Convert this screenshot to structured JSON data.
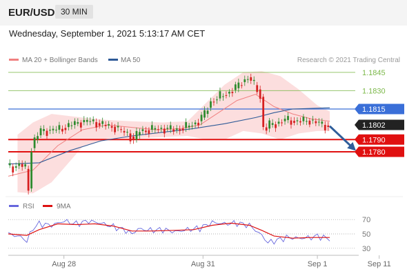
{
  "header": {
    "pair": "EUR/USD",
    "timeframe": "30 MIN",
    "datetime": "Wednesday, September 1, 2021 5:13:17 AM CET"
  },
  "legend": {
    "ma20": {
      "label": "MA 20 + Bollinger Bands",
      "color": "#f08080"
    },
    "ma50": {
      "label": "MA 50",
      "color": "#2e5a97"
    },
    "credit": "Research © 2021 Trading Central",
    "rsi": {
      "label": "RSI",
      "color": "#6666dd"
    },
    "ma9": {
      "label": "9MA",
      "color": "#dd1111"
    }
  },
  "colors": {
    "bull": "#2e8b2e",
    "bear": "#d62020",
    "target": "#7cb84a",
    "pivot": "#3a6fd8",
    "support": "#e01010",
    "last": "#222222",
    "arrow": "#2f5d9a"
  },
  "chart_data": [
    {
      "type": "candlestick",
      "title": "EUR/USD",
      "timeframe": "30 MIN",
      "ylim": [
        1.1745,
        1.185
      ],
      "x_ticks": [
        "Aug 28",
        "Aug 31",
        "Sep 1",
        "Sep 11"
      ],
      "levels": [
        {
          "value": 1.1845,
          "label": "1.1845",
          "role": "target"
        },
        {
          "value": 1.183,
          "label": "1.1830",
          "role": "target"
        },
        {
          "value": 1.1815,
          "label": "1.1815",
          "role": "pivot"
        },
        {
          "value": 1.1802,
          "label": "1.1802",
          "role": "last"
        },
        {
          "value": 1.179,
          "label": "1.1790",
          "role": "support"
        },
        {
          "value": 1.178,
          "label": "1.1780",
          "role": "support"
        }
      ],
      "path": [
        [
          0,
          1.1769
        ],
        [
          2,
          1.1767
        ],
        [
          4,
          1.177
        ],
        [
          6,
          1.1766
        ],
        [
          7,
          1.175
        ],
        [
          8,
          1.1783
        ],
        [
          9,
          1.179
        ],
        [
          11,
          1.1797
        ],
        [
          16,
          1.1798
        ],
        [
          20,
          1.1801
        ],
        [
          23,
          1.1804
        ],
        [
          27,
          1.1805
        ],
        [
          31,
          1.1802
        ],
        [
          35,
          1.18
        ],
        [
          37,
          1.1797
        ],
        [
          39,
          1.1795
        ],
        [
          41,
          1.179
        ],
        [
          43,
          1.1797
        ],
        [
          46,
          1.1798
        ],
        [
          50,
          1.1799
        ],
        [
          54,
          1.1798
        ],
        [
          58,
          1.18
        ],
        [
          62,
          1.1805
        ],
        [
          64,
          1.1811
        ],
        [
          66,
          1.1821
        ],
        [
          69,
          1.1825
        ],
        [
          72,
          1.1829
        ],
        [
          74,
          1.1832
        ],
        [
          76,
          1.1837
        ],
        [
          78,
          1.1841
        ],
        [
          79,
          1.1838
        ],
        [
          81,
          1.1831
        ],
        [
          82,
          1.1825
        ],
        [
          83,
          1.18
        ],
        [
          84,
          1.1799
        ],
        [
          85,
          1.1802
        ],
        [
          87,
          1.1803
        ],
        [
          90,
          1.1806
        ],
        [
          93,
          1.1805
        ],
        [
          96,
          1.1805
        ],
        [
          98,
          1.1806
        ],
        [
          100,
          1.1804
        ],
        [
          102,
          1.1802
        ],
        [
          104,
          1.1801
        ]
      ],
      "ma20": [
        [
          0,
          1.176
        ],
        [
          8,
          1.1765
        ],
        [
          16,
          1.1785
        ],
        [
          24,
          1.1798
        ],
        [
          32,
          1.1802
        ],
        [
          40,
          1.18
        ],
        [
          48,
          1.1798
        ],
        [
          56,
          1.1799
        ],
        [
          62,
          1.1802
        ],
        [
          68,
          1.1812
        ],
        [
          74,
          1.1822
        ],
        [
          80,
          1.1827
        ],
        [
          86,
          1.1817
        ],
        [
          92,
          1.1811
        ],
        [
          98,
          1.1807
        ],
        [
          104,
          1.1805
        ]
      ],
      "ma50": [
        [
          0,
          1.177
        ],
        [
          10,
          1.1771
        ],
        [
          20,
          1.1781
        ],
        [
          30,
          1.1789
        ],
        [
          40,
          1.1793
        ],
        [
          50,
          1.1796
        ],
        [
          60,
          1.1799
        ],
        [
          70,
          1.1803
        ],
        [
          80,
          1.1808
        ],
        [
          86,
          1.1812
        ],
        [
          92,
          1.1815
        ],
        [
          104,
          1.1816
        ]
      ],
      "bollinger_upper": [
        [
          3,
          1.1794
        ],
        [
          8,
          1.1804
        ],
        [
          14,
          1.1811
        ],
        [
          24,
          1.1808
        ],
        [
          32,
          1.1806
        ],
        [
          40,
          1.1805
        ],
        [
          50,
          1.1804
        ],
        [
          58,
          1.1805
        ],
        [
          64,
          1.182
        ],
        [
          70,
          1.1835
        ],
        [
          76,
          1.1845
        ],
        [
          82,
          1.1846
        ],
        [
          88,
          1.1842
        ],
        [
          94,
          1.1831
        ],
        [
          100,
          1.1818
        ],
        [
          104,
          1.1813
        ]
      ],
      "bollinger_lower": [
        [
          3,
          1.1747
        ],
        [
          8,
          1.1746
        ],
        [
          14,
          1.1755
        ],
        [
          24,
          1.1784
        ],
        [
          32,
          1.1791
        ],
        [
          40,
          1.1791
        ],
        [
          50,
          1.1792
        ],
        [
          58,
          1.1793
        ],
        [
          64,
          1.179
        ],
        [
          70,
          1.179
        ],
        [
          76,
          1.1797
        ],
        [
          82,
          1.1795
        ],
        [
          88,
          1.179
        ],
        [
          94,
          1.1795
        ],
        [
          100,
          1.1797
        ],
        [
          104,
          1.1797
        ]
      ],
      "projection": {
        "from": [
          104,
          1.1801
        ],
        "to": [
          112,
          1.1782
        ]
      }
    },
    {
      "type": "line",
      "title": "RSI",
      "ylim": [
        25,
        75
      ],
      "y_ticks": [
        70,
        50,
        30
      ],
      "series": [
        {
          "name": "RSI",
          "values": [
            [
              0,
              50
            ],
            [
              4,
              46
            ],
            [
              6,
              40
            ],
            [
              8,
              58
            ],
            [
              10,
              64
            ],
            [
              14,
              62
            ],
            [
              18,
              68
            ],
            [
              22,
              64
            ],
            [
              26,
              68
            ],
            [
              30,
              65
            ],
            [
              34,
              60
            ],
            [
              38,
              55
            ],
            [
              40,
              50
            ],
            [
              42,
              57
            ],
            [
              46,
              55
            ],
            [
              50,
              56
            ],
            [
              54,
              53
            ],
            [
              58,
              56
            ],
            [
              62,
              58
            ],
            [
              66,
              66
            ],
            [
              70,
              64
            ],
            [
              74,
              65
            ],
            [
              78,
              62
            ],
            [
              80,
              55
            ],
            [
              82,
              48
            ],
            [
              84,
              38
            ],
            [
              86,
              40
            ],
            [
              90,
              45
            ],
            [
              94,
              44
            ],
            [
              98,
              45
            ],
            [
              100,
              47
            ],
            [
              104,
              43
            ]
          ]
        },
        {
          "name": "9MA",
          "values": [
            [
              0,
              50
            ],
            [
              6,
              48
            ],
            [
              10,
              56
            ],
            [
              16,
              64
            ],
            [
              22,
              63
            ],
            [
              28,
              64
            ],
            [
              34,
              61
            ],
            [
              40,
              54
            ],
            [
              46,
              54
            ],
            [
              54,
              55
            ],
            [
              60,
              56
            ],
            [
              66,
              62
            ],
            [
              72,
              65
            ],
            [
              78,
              62
            ],
            [
              82,
              55
            ],
            [
              86,
              47
            ],
            [
              92,
              44
            ],
            [
              98,
              45
            ],
            [
              104,
              45
            ]
          ]
        }
      ]
    }
  ]
}
